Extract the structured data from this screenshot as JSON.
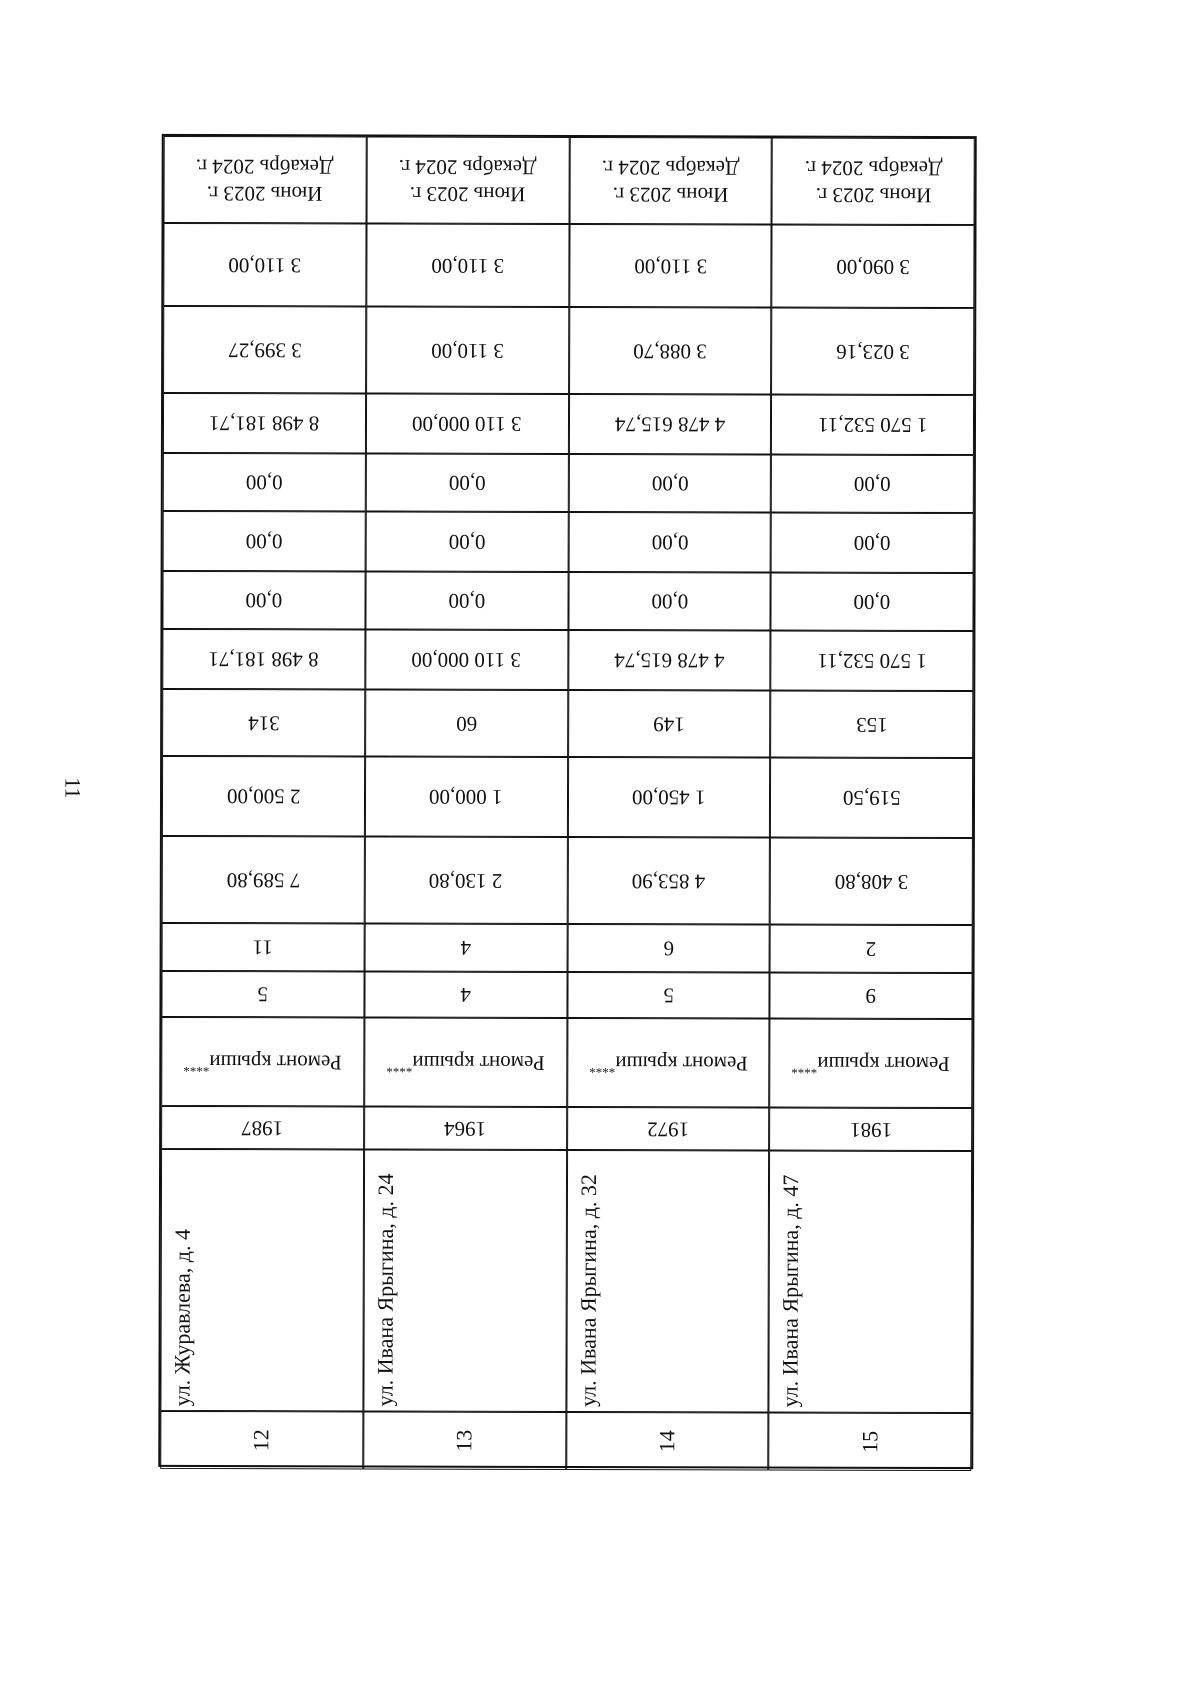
{
  "page_number": "11",
  "rows": [
    {
      "num": "12",
      "address": "ул. Журавлева, д. 4",
      "year": "1987",
      "work": "Ремонт крыши",
      "mark": "****",
      "floors": "5",
      "entrances": "11",
      "c1": "7 589,80",
      "c2": "2 500,00",
      "c3": "314",
      "c4": "8 498 181,71",
      "c5": "0,00",
      "c6": "0,00",
      "c7": "0,00",
      "c8": "8 498 181,71",
      "c9": "3 399,27",
      "c10": "3 110,00",
      "period": "Июнь 2023 г.\nДекабрь 2024 г."
    },
    {
      "num": "13",
      "address": "ул. Ивана Ярыгина, д. 24",
      "year": "1964",
      "work": "Ремонт крыши",
      "mark": "****",
      "floors": "4",
      "entrances": "4",
      "c1": "2 130,80",
      "c2": "1 000,00",
      "c3": "60",
      "c4": "3 110 000,00",
      "c5": "0,00",
      "c6": "0,00",
      "c7": "0,00",
      "c8": "3 110 000,00",
      "c9": "3 110,00",
      "c10": "3 110,00",
      "period": "Июнь 2023 г.\nДекабрь 2024 г."
    },
    {
      "num": "14",
      "address": "ул. Ивана Ярыгина, д. 32",
      "year": "1972",
      "work": "Ремонт крыши",
      "mark": "****",
      "floors": "5",
      "entrances": "6",
      "c1": "4 853,90",
      "c2": "1 450,00",
      "c3": "149",
      "c4": "4 478 615,74",
      "c5": "0,00",
      "c6": "0,00",
      "c7": "0,00",
      "c8": "4 478 615,74",
      "c9": "3 088,70",
      "c10": "3 110,00",
      "period": "Июнь 2023 г.\nДекабрь 2024 г."
    },
    {
      "num": "15",
      "address": "ул. Ивана Ярыгина, д. 47",
      "year": "1981",
      "work": "Ремонт крыши",
      "mark": "****",
      "floors": "9",
      "entrances": "2",
      "c1": "3 408,80",
      "c2": "519,50",
      "c3": "153",
      "c4": "1 570 532,11",
      "c5": "0,00",
      "c6": "0,00",
      "c7": "0,00",
      "c8": "1 570 532,11",
      "c9": "3 023,16",
      "c10": "3 090,00",
      "period": "Июнь 2023 г.\nДекабрь 2024 г."
    }
  ]
}
